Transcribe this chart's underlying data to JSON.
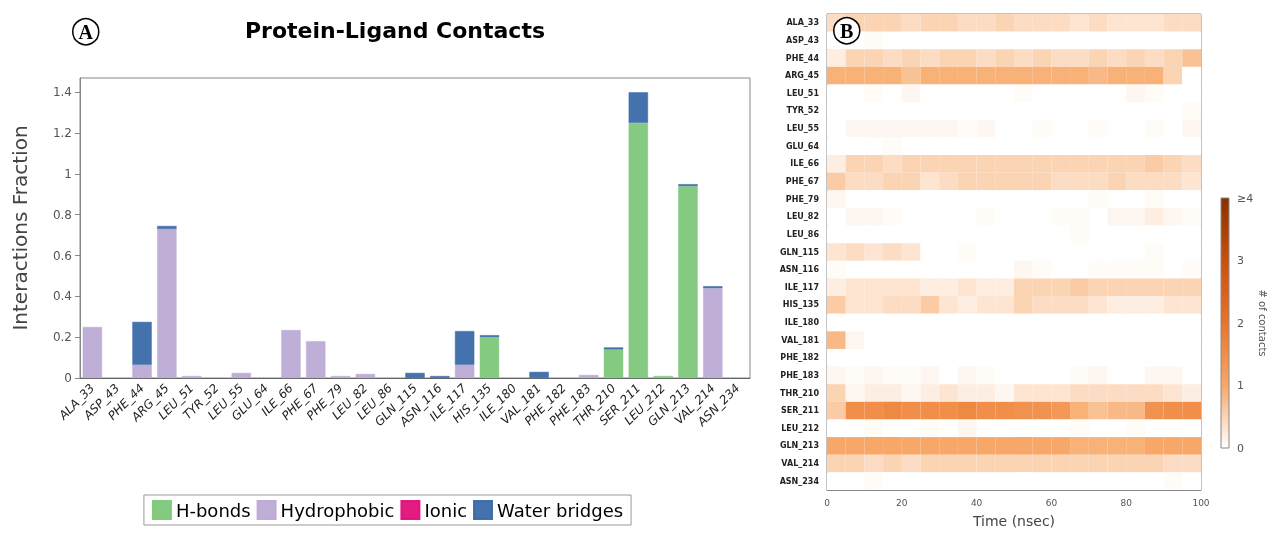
{
  "chart_data": [
    {
      "type": "bar",
      "title": "Protein-Ligand Contacts",
      "ylabel": "Interactions Fraction",
      "annotations": [
        "A"
      ],
      "stacked": true,
      "legend": "bottom",
      "grid": false,
      "categories": [
        "ALA_33",
        "ASP_43",
        "PHE_44",
        "ARG_45",
        "LEU_51",
        "TYR_52",
        "LEU_55",
        "GLU_64",
        "ILE_66",
        "PHE_67",
        "PHE_79",
        "LEU_82",
        "LEU_86",
        "GLN_115",
        "ASN_116",
        "ILE_117",
        "HIS_135",
        "ILE_180",
        "VAL_181",
        "PHE_182",
        "PHE_183",
        "THR_210",
        "SER_211",
        "LEU_212",
        "GLN_213",
        "VAL_214",
        "ASN_234"
      ],
      "ylim": [
        0,
        1.47
      ],
      "yticks": [
        0.0,
        0.2,
        0.4,
        0.6,
        0.8,
        1.0,
        1.2,
        1.4
      ],
      "series": [
        {
          "name": "H-bonds",
          "color": "#7dc87a",
          "values": [
            null,
            null,
            null,
            null,
            null,
            null,
            null,
            null,
            null,
            null,
            null,
            null,
            null,
            null,
            null,
            null,
            0.2,
            null,
            null,
            null,
            null,
            0.14,
            1.25,
            0.008,
            0.94,
            null,
            null
          ]
        },
        {
          "name": "Hydrophobic",
          "color": "#bcaad4",
          "values": [
            0.25,
            null,
            0.065,
            0.73,
            0.005,
            null,
            0.025,
            null,
            0.235,
            0.18,
            0.005,
            0.02,
            null,
            null,
            null,
            0.065,
            null,
            null,
            null,
            null,
            0.015,
            null,
            null,
            null,
            null,
            0.44,
            null
          ]
        },
        {
          "name": "Ionic",
          "color": "#e0107a",
          "values": [
            null,
            null,
            null,
            null,
            null,
            null,
            null,
            null,
            null,
            null,
            null,
            null,
            null,
            null,
            null,
            null,
            null,
            null,
            null,
            null,
            null,
            null,
            null,
            null,
            null,
            null,
            null
          ]
        },
        {
          "name": "Water bridges",
          "color": "#3a6aa8",
          "values": [
            null,
            null,
            0.21,
            0.015,
            null,
            null,
            null,
            null,
            null,
            null,
            null,
            null,
            null,
            0.025,
            0.008,
            0.165,
            0.01,
            null,
            0.03,
            null,
            null,
            0.005,
            0.15,
            null,
            0.005,
            0.007,
            null
          ]
        }
      ]
    },
    {
      "type": "heatmap",
      "xlabel": "Time (nsec)",
      "clabel": "# of contacts",
      "annotations": [
        "B"
      ],
      "x": [
        2.5,
        7.5,
        12.5,
        17.5,
        22.5,
        27.5,
        32.5,
        37.5,
        42.5,
        47.5,
        52.5,
        57.5,
        62.5,
        67.5,
        72.5,
        77.5,
        82.5,
        87.5,
        92.5,
        97.5
      ],
      "xlim": [
        0,
        100
      ],
      "xticks": [
        0,
        20,
        40,
        60,
        80,
        100
      ],
      "y_categories": [
        "ALA_33",
        "ASP_43",
        "PHE_44",
        "ARG_45",
        "LEU_51",
        "TYR_52",
        "LEU_55",
        "GLU_64",
        "ILE_66",
        "PHE_67",
        "PHE_79",
        "LEU_82",
        "LEU_86",
        "GLN_115",
        "ASN_116",
        "ILE_117",
        "HIS_135",
        "ILE_180",
        "VAL_181",
        "PHE_182",
        "PHE_183",
        "THR_210",
        "SER_211",
        "LEU_212",
        "GLN_213",
        "VAL_214",
        "ASN_234"
      ],
      "clim": [
        0,
        4
      ],
      "cticks": [
        0,
        1,
        2,
        3,
        {
          "value": 4,
          "label": "≥4"
        }
      ],
      "cells": [
        [
          0.4,
          0.5,
          0.5,
          0.5,
          0.4,
          0.5,
          0.5,
          0.4,
          0.4,
          0.5,
          0.4,
          0.4,
          0.4,
          0.3,
          0.4,
          0.3,
          0.3,
          0.3,
          0.4,
          0.4
        ],
        [
          0,
          0,
          0.05,
          0,
          0,
          0,
          0,
          0,
          0,
          0,
          0,
          0,
          0,
          0,
          0,
          0,
          0,
          0,
          0,
          0
        ],
        [
          0.2,
          0.5,
          0.5,
          0.4,
          0.5,
          0.4,
          0.5,
          0.5,
          0.4,
          0.5,
          0.4,
          0.5,
          0.4,
          0.4,
          0.5,
          0.4,
          0.5,
          0.4,
          0.5,
          0.7
        ],
        [
          0.9,
          0.9,
          0.9,
          0.9,
          0.7,
          0.9,
          0.9,
          0.9,
          0.9,
          0.9,
          0.9,
          0.9,
          0.9,
          0.9,
          0.8,
          0.9,
          0.9,
          0.9,
          0.5,
          0
        ],
        [
          0,
          0,
          0.05,
          0,
          0.1,
          0,
          0,
          0,
          0,
          0,
          0.05,
          0,
          0,
          0,
          0,
          0,
          0.1,
          0.05,
          0,
          0
        ],
        [
          0,
          0,
          0,
          0,
          0,
          0,
          0,
          0,
          0,
          0,
          0,
          0,
          0,
          0,
          0,
          0,
          0,
          0,
          0,
          0.05
        ],
        [
          0,
          0.1,
          0.1,
          0.1,
          0.1,
          0.1,
          0.1,
          0.05,
          0.1,
          0,
          0,
          0.05,
          0,
          0,
          0.05,
          0,
          0,
          0.05,
          0,
          0.1
        ],
        [
          0,
          0,
          0,
          0.05,
          0,
          0,
          0,
          0,
          0,
          0,
          0,
          0,
          0,
          0,
          0,
          0,
          0,
          0,
          0,
          0
        ],
        [
          0.2,
          0.5,
          0.5,
          0.4,
          0.5,
          0.5,
          0.5,
          0.5,
          0.5,
          0.5,
          0.5,
          0.5,
          0.5,
          0.5,
          0.5,
          0.5,
          0.5,
          0.6,
          0.5,
          0.4
        ],
        [
          0.6,
          0.4,
          0.4,
          0.5,
          0.5,
          0.3,
          0.4,
          0.5,
          0.5,
          0.5,
          0.5,
          0.5,
          0.4,
          0.4,
          0.4,
          0.5,
          0.4,
          0.4,
          0.4,
          0.3
        ],
        [
          0.1,
          0,
          0,
          0,
          0,
          0,
          0,
          0,
          0,
          0,
          0,
          0,
          0,
          0,
          0.05,
          0,
          0,
          0.05,
          0,
          0
        ],
        [
          0,
          0.1,
          0.1,
          0.05,
          0,
          0,
          0,
          0,
          0.05,
          0,
          0,
          0,
          0.05,
          0.05,
          0,
          0.1,
          0.1,
          0.2,
          0.1,
          0.05
        ],
        [
          0,
          0,
          0,
          0,
          0,
          0,
          0,
          0,
          0,
          0,
          0,
          0,
          0,
          0.05,
          0,
          0,
          0,
          0,
          0,
          0
        ],
        [
          0.3,
          0.4,
          0.3,
          0.4,
          0.3,
          0,
          0,
          0.05,
          0,
          0,
          0,
          0,
          0,
          0,
          0,
          0,
          0,
          0.05,
          0,
          0
        ],
        [
          0.05,
          0,
          0,
          0,
          0,
          0,
          0,
          0,
          0,
          0,
          0.1,
          0.05,
          0,
          0,
          0.05,
          0.05,
          0.05,
          0.05,
          0,
          0.05
        ],
        [
          0.2,
          0.3,
          0.3,
          0.3,
          0.3,
          0.2,
          0.2,
          0.3,
          0.2,
          0.2,
          0.5,
          0.5,
          0.5,
          0.6,
          0.5,
          0.5,
          0.5,
          0.5,
          0.5,
          0.5
        ],
        [
          0.6,
          0.3,
          0.3,
          0.4,
          0.4,
          0.6,
          0.3,
          0.2,
          0.3,
          0.3,
          0.5,
          0.4,
          0.4,
          0.4,
          0.3,
          0.2,
          0.2,
          0.2,
          0.3,
          0.3
        ],
        [
          0,
          0,
          0,
          0,
          0,
          0,
          0,
          0,
          0,
          0,
          0,
          0,
          0,
          0,
          0,
          0,
          0,
          0,
          0,
          0
        ],
        [
          0.8,
          0.1,
          0,
          0,
          0,
          0,
          0,
          0,
          0,
          0,
          0,
          0,
          0,
          0,
          0,
          0,
          0,
          0,
          0,
          0
        ],
        [
          0,
          0,
          0,
          0,
          0,
          0,
          0,
          0,
          0,
          0,
          0,
          0,
          0,
          0,
          0,
          0,
          0,
          0,
          0,
          0
        ],
        [
          0.1,
          0.05,
          0.1,
          0.05,
          0.05,
          0.1,
          0,
          0.1,
          0.05,
          0,
          0,
          0,
          0,
          0.05,
          0.1,
          0,
          0,
          0.1,
          0.1,
          0
        ],
        [
          0.5,
          0.1,
          0.2,
          0.2,
          0.1,
          0.2,
          0.3,
          0.2,
          0.2,
          0.1,
          0.3,
          0.3,
          0.3,
          0.4,
          0.4,
          0.4,
          0.4,
          0.4,
          0.3,
          0.2
        ],
        [
          0.6,
          1.5,
          1.5,
          1.6,
          1.5,
          1.5,
          1.5,
          1.6,
          1.5,
          1.5,
          1.4,
          1.4,
          1.3,
          0.9,
          0.7,
          0.8,
          0.8,
          1.4,
          1.5,
          1.5
        ],
        [
          0,
          0,
          0.05,
          0,
          0,
          0.05,
          0,
          0.1,
          0,
          0,
          0,
          0,
          0,
          0.05,
          0,
          0,
          0.05,
          0,
          0,
          0
        ],
        [
          1,
          1,
          1,
          1,
          1,
          1,
          1,
          1,
          1,
          1,
          1,
          1,
          1,
          0.9,
          0.9,
          0.9,
          0.9,
          1,
          1,
          1
        ],
        [
          0.5,
          0.5,
          0.4,
          0.5,
          0.4,
          0.5,
          0.5,
          0.5,
          0.5,
          0.5,
          0.5,
          0.5,
          0.5,
          0.5,
          0.5,
          0.5,
          0.5,
          0.5,
          0.4,
          0.4
        ],
        [
          0,
          0,
          0.05,
          0,
          0,
          0,
          0,
          0,
          0,
          0,
          0,
          0,
          0,
          0,
          0,
          0,
          0,
          0,
          0.05,
          0
        ]
      ]
    }
  ]
}
